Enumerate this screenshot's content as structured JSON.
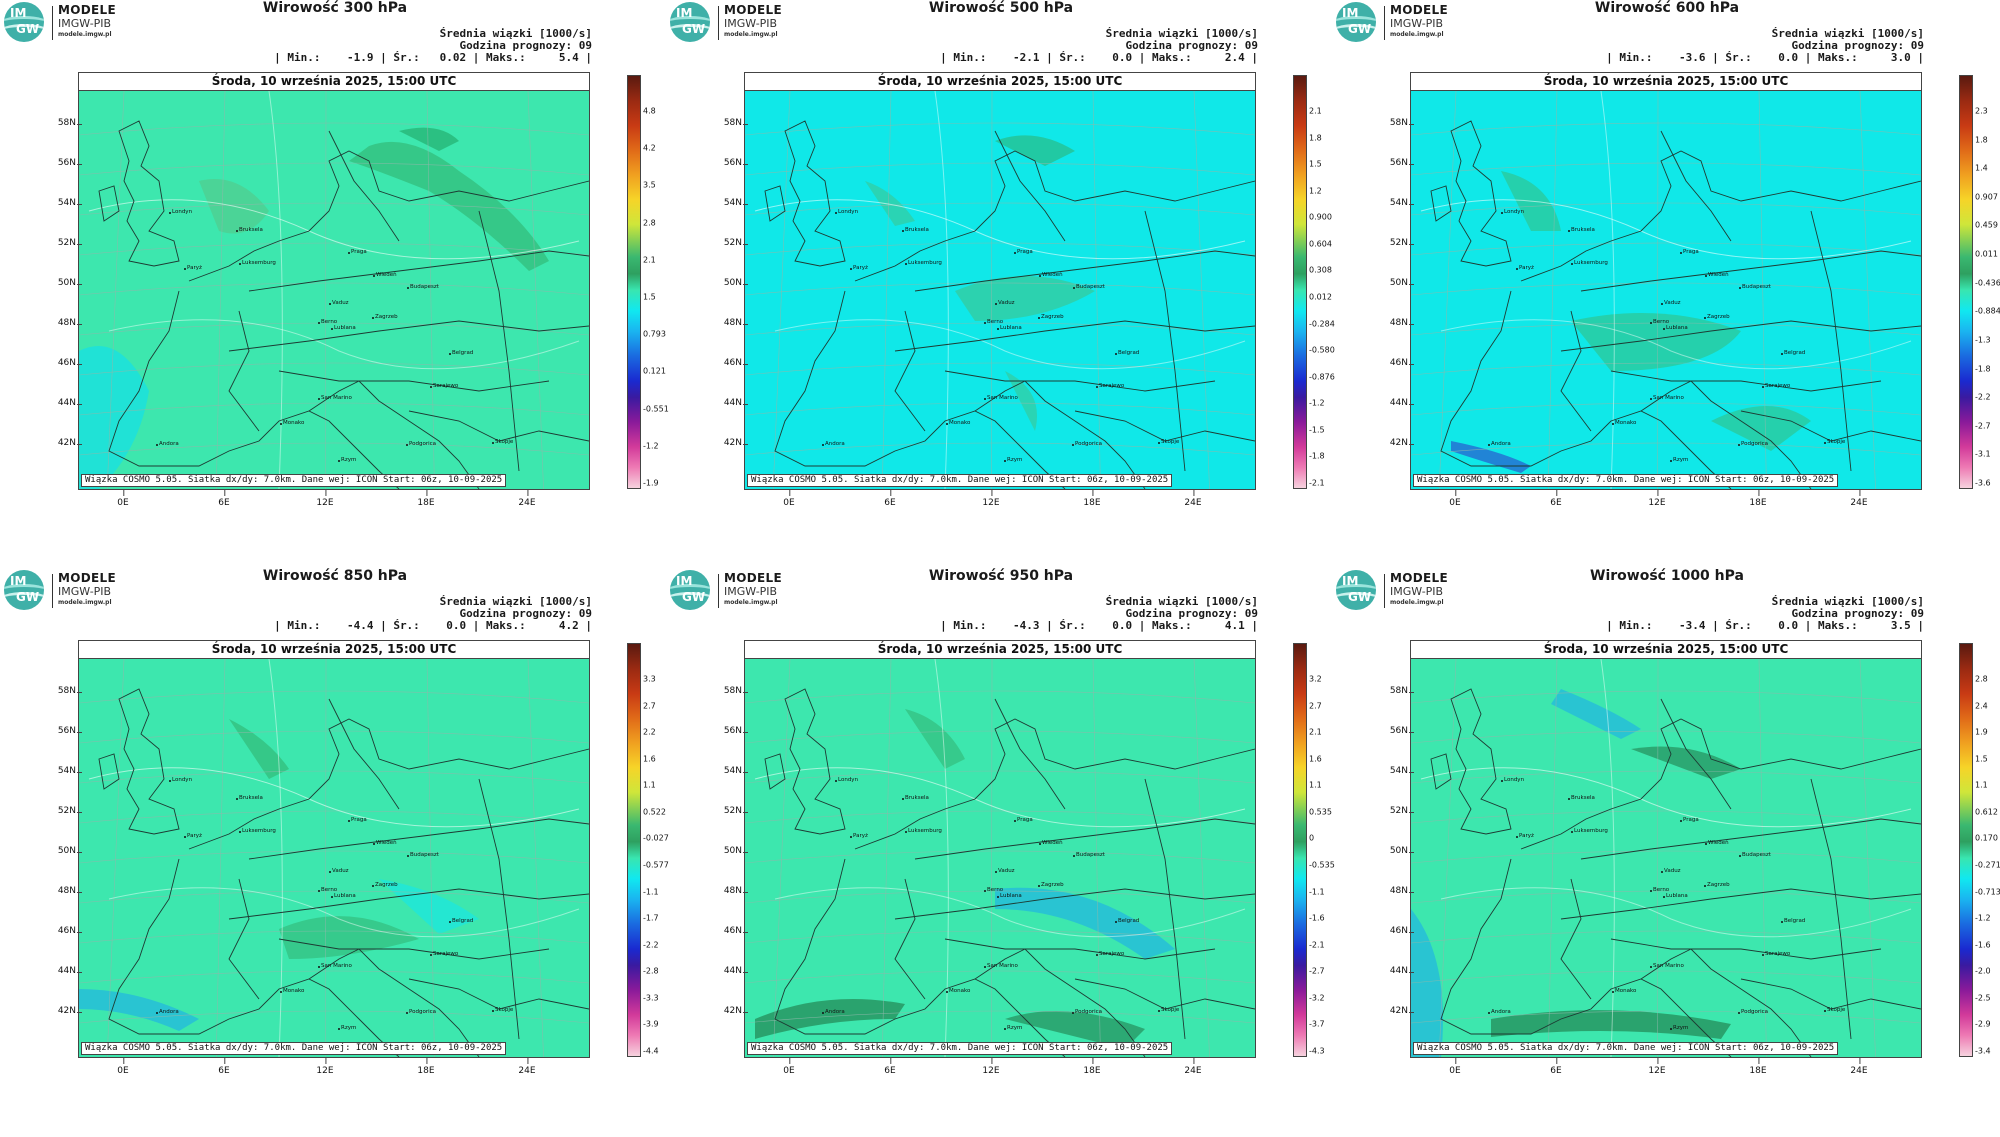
{
  "logo": {
    "line1": "MODELE",
    "line2": "IMGW-PIB",
    "line3": "modele.imgw.pl",
    "mark_top": "IM",
    "mark_bottom": "GW"
  },
  "date_label": "Środa, 10 września 2025, 15:00 UTC",
  "footer_note": "Wiązka COSMO 5.05. Siatka dx/dy: 7.0km. Dane wej: ICON Start: 06z, 10-09-2025",
  "lat_labels": [
    "58N",
    "56N",
    "54N",
    "52N",
    "50N",
    "48N",
    "46N",
    "44N",
    "42N"
  ],
  "lon_labels": [
    "0E",
    "6E",
    "12E",
    "18E",
    "24E"
  ],
  "cities": [
    "Londyn",
    "Bruksela",
    "Luksemburg",
    "Paryż",
    "Praga",
    "Wiedeń",
    "Budapeszt",
    "Berno",
    "Vaduz",
    "Zagrzeb",
    "Lublana",
    "Belgrad",
    "Sarajewo",
    "San Marino",
    "Podgorica",
    "Andora",
    "Monako",
    "Skopje",
    "Rzym"
  ],
  "colors": {
    "background": "#3de7ae",
    "low": "#00e5ff",
    "positive_green": "#3ab870",
    "dark_green": "#1b6b3a"
  },
  "panels": [
    {
      "title": "Wirowość 300 hPa",
      "stats_line1": "Średnia wiązki [1000/s]",
      "stats_line2": "Godzina prognozy: 09",
      "stats_line3": "| Min.:    -1.9 | Śr.:   0.02 | Maks.:     5.4 |",
      "field_base": "#3de7ae",
      "colorbar_ticks": [
        "4.8",
        "4.2",
        "3.5",
        "2.8",
        "2.1",
        "1.5",
        "0.793",
        "0.121",
        "-0.551",
        "-1.2",
        "-1.9"
      ]
    },
    {
      "title": "Wirowość 500 hPa",
      "stats_line1": "Średnia wiązki [1000/s]",
      "stats_line2": "Godzina prognozy: 09",
      "stats_line3": "| Min.:    -2.1 | Śr.:    0.0 | Maks.:     2.4 |",
      "field_base": "#10e8e8",
      "colorbar_ticks": [
        "2.1",
        "1.8",
        "1.5",
        "1.2",
        "0.900",
        "0.604",
        "0.308",
        "0.012",
        "-0.284",
        "-0.580",
        "-0.876",
        "-1.2",
        "-1.5",
        "-1.8",
        "-2.1"
      ]
    },
    {
      "title": "Wirowość 600 hPa",
      "stats_line1": "Średnia wiązki [1000/s]",
      "stats_line2": "Godzina prognozy: 09",
      "stats_line3": "| Min.:    -3.6 | Śr.:    0.0 | Maks.:     3.0 |",
      "field_base": "#10e8e8",
      "colorbar_ticks": [
        "2.3",
        "1.8",
        "1.4",
        "0.907",
        "0.459",
        "0.011",
        "-0.436",
        "-0.884",
        "-1.3",
        "-1.8",
        "-2.2",
        "-2.7",
        "-3.1",
        "-3.6"
      ]
    },
    {
      "title": "Wirowość 850 hPa",
      "stats_line1": "Średnia wiązki [1000/s]",
      "stats_line2": "Godzina prognozy: 09",
      "stats_line3": "| Min.:    -4.4 | Śr.:    0.0 | Maks.:     4.2 |",
      "field_base": "#3de7ae",
      "colorbar_ticks": [
        "3.3",
        "2.7",
        "2.2",
        "1.6",
        "1.1",
        "0.522",
        "-0.027",
        "-0.577",
        "-1.1",
        "-1.7",
        "-2.2",
        "-2.8",
        "-3.3",
        "-3.9",
        "-4.4"
      ]
    },
    {
      "title": "Wirowość 950 hPa",
      "stats_line1": "Średnia wiązki [1000/s]",
      "stats_line2": "Godzina prognozy: 09",
      "stats_line3": "| Min.:    -4.3 | Śr.:    0.0 | Maks.:     4.1 |",
      "field_base": "#3de7ae",
      "colorbar_ticks": [
        "3.2",
        "2.7",
        "2.1",
        "1.6",
        "1.1",
        "0.535",
        "0",
        "-0.535",
        "-1.1",
        "-1.6",
        "-2.1",
        "-2.7",
        "-3.2",
        "-3.7",
        "-4.3"
      ]
    },
    {
      "title": "Wirowość 1000 hPa",
      "stats_line1": "Średnia wiązki [1000/s]",
      "stats_line2": "Godzina prognozy: 09",
      "stats_line3": "| Min.:    -3.4 | Śr.:    0.0 | Maks.:     3.5 |",
      "field_base": "#3de7ae",
      "colorbar_ticks": [
        "2.8",
        "2.4",
        "1.9",
        "1.5",
        "1.1",
        "0.612",
        "0.170",
        "-0.271",
        "-0.713",
        "-1.2",
        "-1.6",
        "-2.0",
        "-2.5",
        "-2.9",
        "-3.4"
      ]
    }
  ]
}
